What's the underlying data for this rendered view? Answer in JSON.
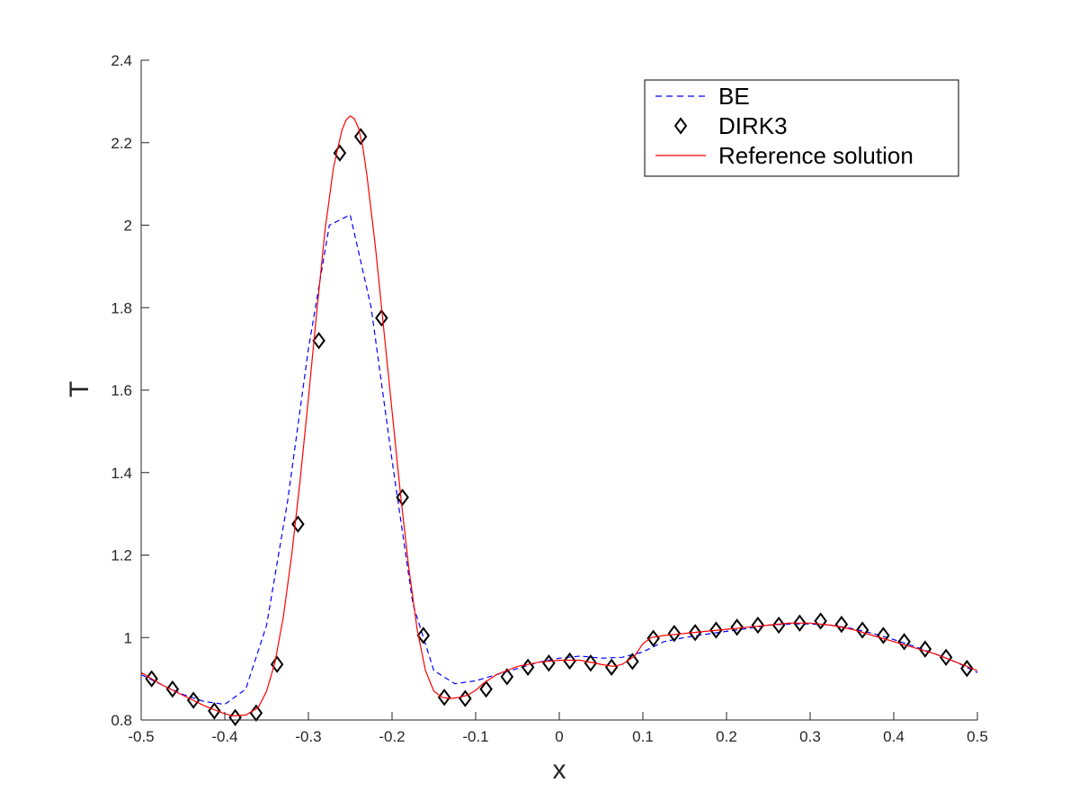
{
  "chart_data": {
    "type": "line",
    "title": "",
    "xlabel": "x",
    "ylabel": "T",
    "xlim": [
      -0.5,
      0.5
    ],
    "ylim": [
      0.8,
      2.4
    ],
    "xticks": [
      "-0.5",
      "-0.4",
      "-0.3",
      "-0.2",
      "-0.1",
      "0",
      "0.1",
      "0.2",
      "0.3",
      "0.4",
      "0.5"
    ],
    "yticks": [
      "0.8",
      "1",
      "1.2",
      "1.4",
      "1.6",
      "1.8",
      "2",
      "2.2",
      "2.4"
    ],
    "grid": false,
    "legend_position": "top-right",
    "series": [
      {
        "name": "BE",
        "style": "dashed-line",
        "color": "#0000ff",
        "x": [
          -0.5,
          -0.475,
          -0.45,
          -0.425,
          -0.4,
          -0.375,
          -0.35,
          -0.325,
          -0.3,
          -0.275,
          -0.25,
          -0.225,
          -0.2,
          -0.175,
          -0.15,
          -0.125,
          -0.1,
          -0.075,
          -0.05,
          -0.025,
          0,
          0.025,
          0.05,
          0.075,
          0.1,
          0.125,
          0.15,
          0.175,
          0.2,
          0.225,
          0.25,
          0.275,
          0.3,
          0.325,
          0.35,
          0.375,
          0.4,
          0.425,
          0.45,
          0.475,
          0.5
        ],
        "y": [
          0.91,
          0.885,
          0.862,
          0.845,
          0.838,
          0.875,
          1.03,
          1.33,
          1.7,
          2.0,
          2.025,
          1.8,
          1.43,
          1.08,
          0.92,
          0.888,
          0.895,
          0.91,
          0.925,
          0.94,
          0.95,
          0.955,
          0.95,
          0.952,
          0.965,
          0.99,
          1.0,
          1.008,
          1.015,
          1.022,
          1.03,
          1.033,
          1.033,
          1.03,
          1.022,
          1.01,
          0.995,
          0.978,
          0.96,
          0.94,
          0.915
        ]
      },
      {
        "name": "DIRK3",
        "style": "diamond-markers",
        "color": "#000000",
        "x": [
          -0.4875,
          -0.4625,
          -0.4375,
          -0.4125,
          -0.3875,
          -0.3625,
          -0.3375,
          -0.3125,
          -0.2875,
          -0.2625,
          -0.2375,
          -0.2125,
          -0.1875,
          -0.1625,
          -0.1375,
          -0.1125,
          -0.0875,
          -0.0625,
          -0.0375,
          -0.0125,
          0.0125,
          0.0375,
          0.0625,
          0.0875,
          0.1125,
          0.1375,
          0.1625,
          0.1875,
          0.2125,
          0.2375,
          0.2625,
          0.2875,
          0.3125,
          0.3375,
          0.3625,
          0.3875,
          0.4125,
          0.4375,
          0.4625,
          0.4875
        ],
        "y": [
          0.9,
          0.875,
          0.848,
          0.822,
          0.806,
          0.817,
          0.935,
          1.275,
          1.72,
          2.175,
          2.215,
          1.775,
          1.34,
          1.005,
          0.855,
          0.852,
          0.875,
          0.905,
          0.928,
          0.938,
          0.943,
          0.938,
          0.928,
          0.942,
          0.998,
          1.01,
          1.012,
          1.018,
          1.025,
          1.03,
          1.03,
          1.035,
          1.04,
          1.032,
          1.018,
          1.005,
          0.99,
          0.972,
          0.952,
          0.925
        ]
      },
      {
        "name": "Reference solution",
        "style": "solid-line",
        "color": "#ff0000",
        "x": [
          -0.5,
          -0.475,
          -0.45,
          -0.425,
          -0.4,
          -0.39,
          -0.375,
          -0.36,
          -0.35,
          -0.34,
          -0.33,
          -0.32,
          -0.31,
          -0.3,
          -0.29,
          -0.28,
          -0.27,
          -0.26,
          -0.255,
          -0.25,
          -0.245,
          -0.24,
          -0.235,
          -0.23,
          -0.22,
          -0.21,
          -0.2,
          -0.19,
          -0.18,
          -0.17,
          -0.16,
          -0.15,
          -0.14,
          -0.13,
          -0.12,
          -0.11,
          -0.1,
          -0.09,
          -0.075,
          -0.05,
          -0.025,
          0,
          0.025,
          0.05,
          0.065,
          0.075,
          0.09,
          0.1,
          0.11,
          0.125,
          0.15,
          0.175,
          0.2,
          0.225,
          0.25,
          0.275,
          0.3,
          0.325,
          0.35,
          0.375,
          0.4,
          0.425,
          0.45,
          0.475,
          0.5
        ],
        "y": [
          0.915,
          0.885,
          0.86,
          0.835,
          0.815,
          0.81,
          0.812,
          0.83,
          0.87,
          0.94,
          1.05,
          1.2,
          1.38,
          1.58,
          1.79,
          1.99,
          2.14,
          2.23,
          2.255,
          2.265,
          2.258,
          2.235,
          2.19,
          2.12,
          1.95,
          1.75,
          1.55,
          1.35,
          1.17,
          1.02,
          0.92,
          0.87,
          0.855,
          0.852,
          0.855,
          0.86,
          0.872,
          0.89,
          0.91,
          0.93,
          0.94,
          0.945,
          0.945,
          0.935,
          0.93,
          0.935,
          0.955,
          0.985,
          1.0,
          1.005,
          1.01,
          1.015,
          1.02,
          1.025,
          1.03,
          1.035,
          1.035,
          1.03,
          1.02,
          1.005,
          0.99,
          0.975,
          0.96,
          0.94,
          0.92
        ]
      }
    ]
  }
}
